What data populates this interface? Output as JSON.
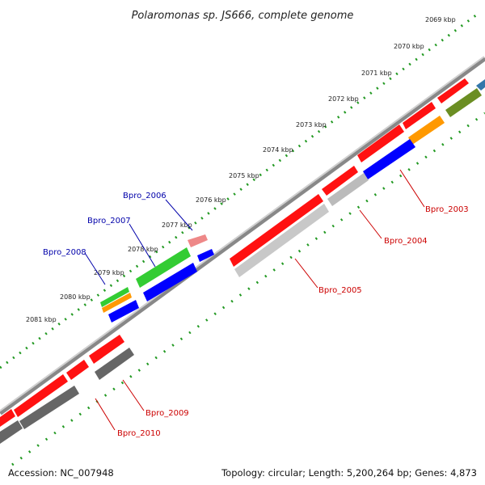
{
  "title": "Polaromonas sp. JS666, complete genome",
  "accession_label": "Accession: NC_007948",
  "topology_label": "Topology: circular; Length: 5,200,264 bp; Genes: 4,873",
  "kbp_ticks": [
    "2069 kbp",
    "2070 kbp",
    "2071 kbp",
    "2072 kbp",
    "2073 kbp",
    "2074 kbp",
    "2075 kbp",
    "2076 kbp",
    "2077 kbp",
    "2078 kbp",
    "2079 kbp",
    "2080 kbp",
    "2081 kbp"
  ],
  "gene_labels": [
    {
      "text": "Bpro_2003",
      "color": "#cc0000"
    },
    {
      "text": "Bpro_2004",
      "color": "#cc0000"
    },
    {
      "text": "Bpro_2005",
      "color": "#cc0000"
    },
    {
      "text": "Bpro_2006",
      "color": "#0000aa"
    },
    {
      "text": "Bpro_2007",
      "color": "#0000aa"
    },
    {
      "text": "Bpro_2008",
      "color": "#0000aa"
    },
    {
      "text": "Bpro_2009",
      "color": "#cc0000"
    },
    {
      "text": "Bpro_2010",
      "color": "#cc0000"
    }
  ],
  "colors": {
    "cds": "#ff0000",
    "gene": "#aaaaaa",
    "cog_blue": "#0000ff",
    "cog_green": "#33cc33",
    "cog_orange": "#ff9900",
    "cog_olive": "#6b8e23",
    "rna_pink": "#ee8888",
    "dark_gray": "#555555",
    "dotted_ring": "#229922",
    "backbone": "#777777"
  }
}
